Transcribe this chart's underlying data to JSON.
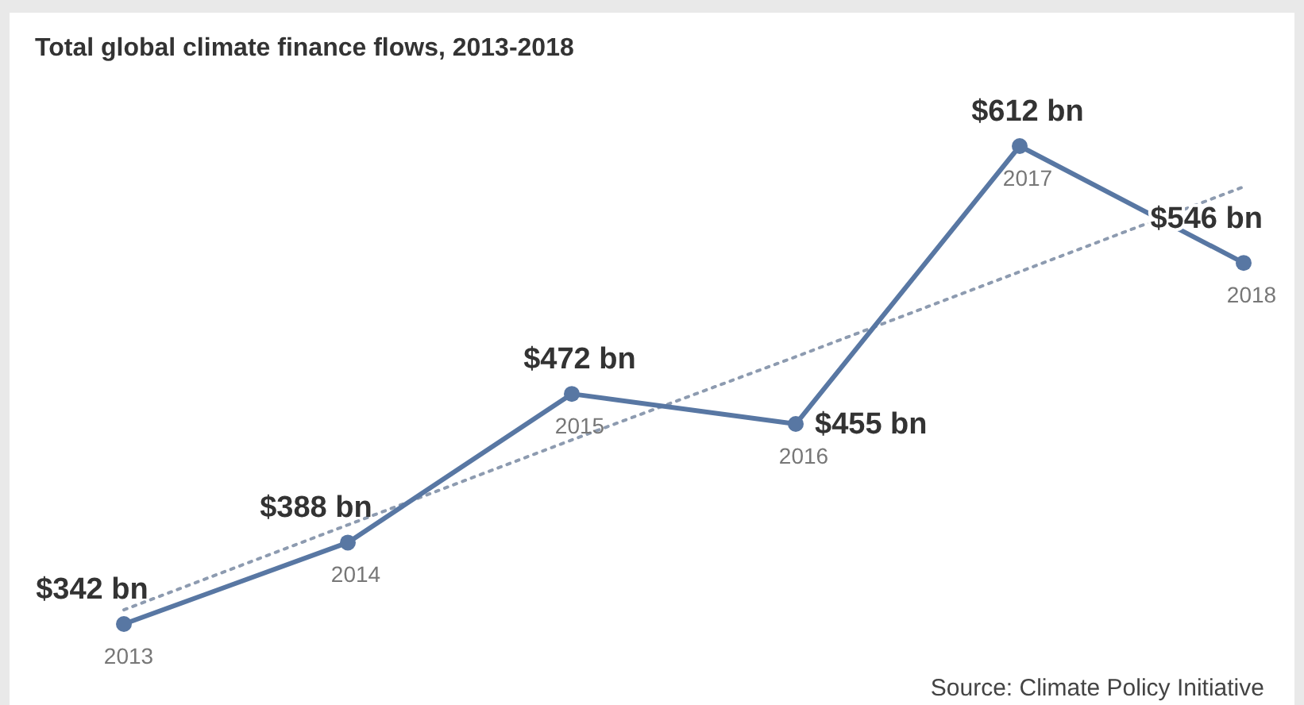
{
  "chart_data": {
    "type": "line",
    "title": "Total global climate finance flows, 2013-2018",
    "categories": [
      "2013",
      "2014",
      "2015",
      "2016",
      "2017",
      "2018"
    ],
    "series": [
      {
        "color": "#5877a3",
        "values": [
          342,
          388,
          472,
          455,
          612,
          546
        ],
        "value_labels": [
          "$342 bn",
          "$388 bn",
          "$472 bn",
          "$455 bn",
          "$612 bn",
          "$546 bn"
        ],
        "marker": "circle",
        "line_style": "solid"
      },
      {
        "type": "line",
        "color": "#8d9bb0",
        "values": [
          350,
          398,
          446,
          493,
          541,
          589
        ],
        "marker": "none",
        "line_style": "dotted"
      }
    ],
    "annotations": [
      "Source: Climate Policy Initiative"
    ]
  }
}
